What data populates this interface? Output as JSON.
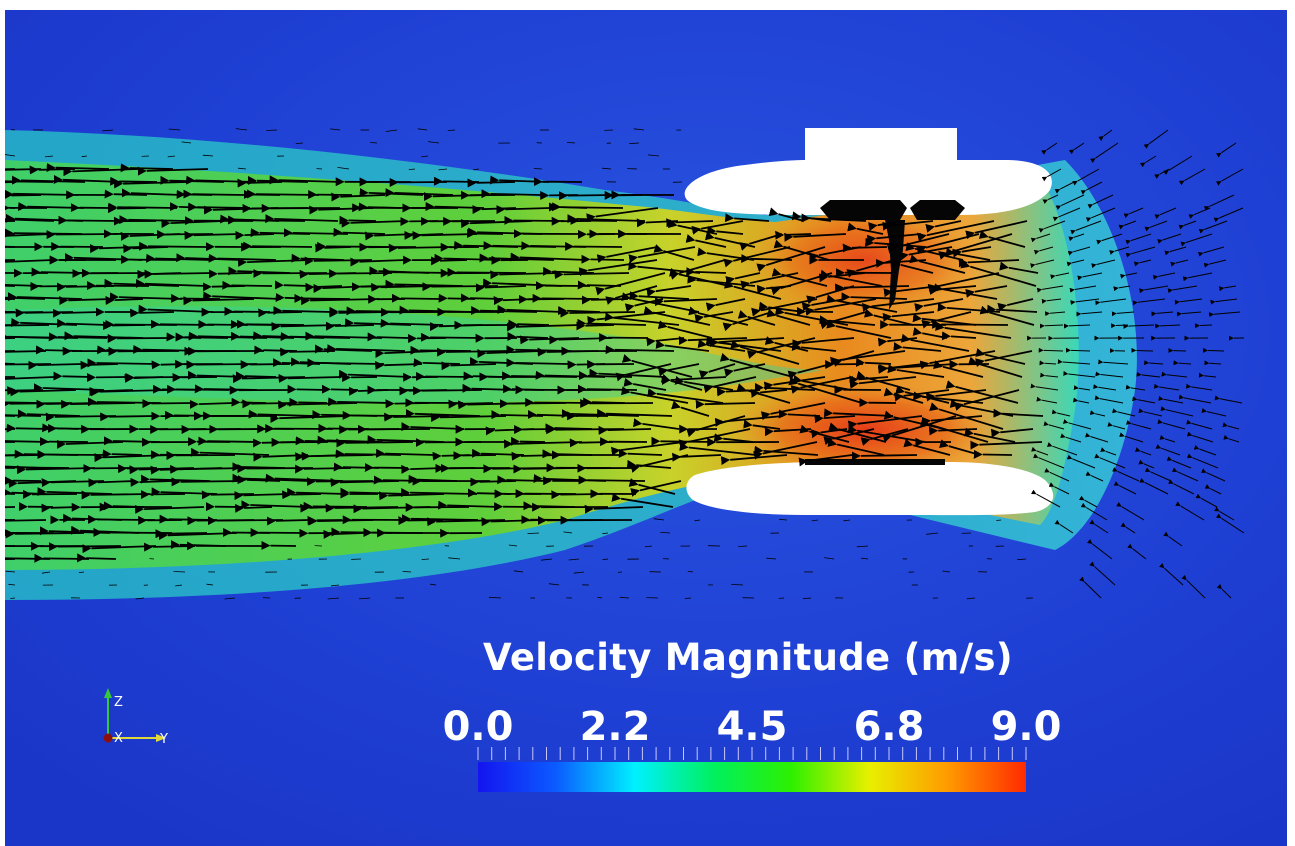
{
  "legend": {
    "title": "Velocity Magnitude (m/s)",
    "min": 0.0,
    "max": 9.0,
    "tick_labels": [
      "0.0",
      "2.2",
      "4.5",
      "6.8",
      "9.0"
    ],
    "colormap": [
      "#1414f0",
      "#0b5cff",
      "#00f0ff",
      "#00f060",
      "#2cf000",
      "#e8f000",
      "#ff9a00",
      "#ff2a00"
    ]
  },
  "orientation_axes": {
    "labels": [
      "Z",
      "X",
      "Y"
    ]
  },
  "colors": {
    "background_field": "#1f3fd6",
    "jet_core": "#38d28a",
    "jet_edge": "#46c84e",
    "high_speed": "#e86a1a",
    "duct": "#ffffff",
    "arrows": "#000000"
  }
}
